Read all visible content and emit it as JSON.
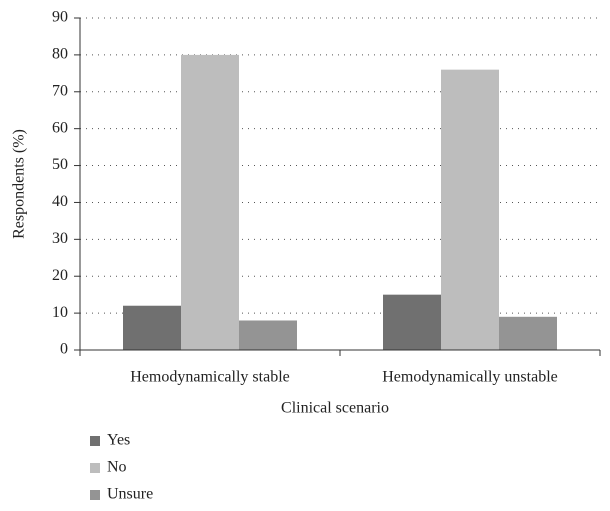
{
  "chart_data": {
    "type": "bar",
    "xlabel": "Clinical scenario",
    "ylabel": "Respondents (%)",
    "categories": [
      "Hemodynamically stable",
      "Hemodynamically unstable"
    ],
    "series": [
      {
        "name": "Yes",
        "color": "#707070",
        "values": [
          12,
          15
        ]
      },
      {
        "name": "No",
        "color": "#bdbdbd",
        "values": [
          80,
          76
        ]
      },
      {
        "name": "Unsure",
        "color": "#949494",
        "values": [
          8,
          9
        ]
      }
    ],
    "ylim": [
      0,
      90
    ],
    "yticks": [
      0,
      10,
      20,
      30,
      40,
      50,
      60,
      70,
      80,
      90
    ],
    "grid": true,
    "legend": "bottom-left"
  }
}
